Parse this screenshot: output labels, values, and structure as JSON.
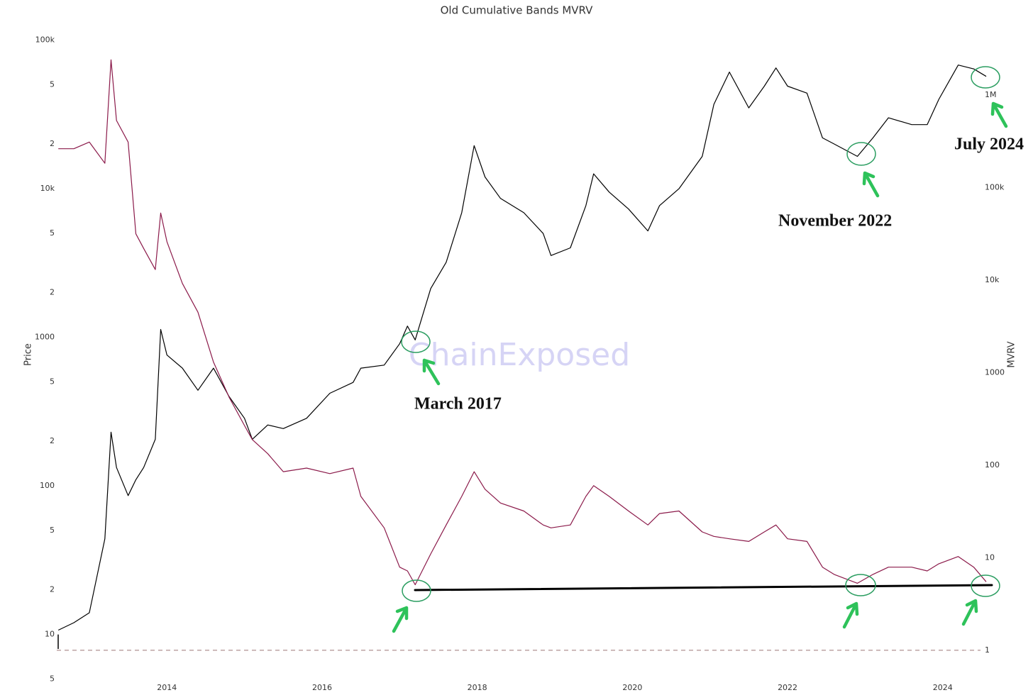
{
  "chart_data": {
    "type": "line",
    "title": "Old Cumulative Bands MVRV",
    "y_label": "Price",
    "y2_label": "MVRV",
    "annotations": [
      "March 2017",
      "November 2022",
      "July 2024"
    ],
    "watermark": "ChainExposed",
    "log_y": true,
    "log_y2": true,
    "grid": false,
    "xlim": [
      2012.58,
      2024.56
    ],
    "xticks": [
      2014,
      2016,
      2018,
      2020,
      2022,
      2024
    ],
    "ylim": [
      4,
      120000
    ],
    "yticks": [
      5,
      10,
      {
        "value": 20,
        "label": "2"
      },
      {
        "value": 50,
        "label": "5"
      },
      100,
      {
        "value": 200,
        "label": "2"
      },
      {
        "value": 500,
        "label": "5"
      },
      1000,
      {
        "value": 2000,
        "label": "2"
      },
      {
        "value": 5000,
        "label": "5"
      },
      {
        "value": 10000,
        "label": "10k"
      },
      {
        "value": 20000,
        "label": "2"
      },
      {
        "value": 50000,
        "label": "5"
      },
      {
        "value": 100000,
        "label": "100k"
      }
    ],
    "y2lim": [
      0.34,
      5250000
    ],
    "y2ticks": [
      1,
      10,
      100,
      1000,
      {
        "value": 10000,
        "label": "10k"
      },
      {
        "value": 100000,
        "label": "100k"
      },
      {
        "value": 1000000,
        "label": "1M"
      }
    ],
    "x": [
      2012.6,
      2012.8,
      2013.0,
      2013.2,
      2013.28,
      2013.35,
      2013.5,
      2013.6,
      2013.7,
      2013.85,
      2013.92,
      2014.0,
      2014.2,
      2014.4,
      2014.6,
      2014.8,
      2015.0,
      2015.1,
      2015.3,
      2015.5,
      2015.8,
      2016.1,
      2016.4,
      2016.5,
      2016.8,
      2017.0,
      2017.1,
      2017.2,
      2017.4,
      2017.6,
      2017.8,
      2017.96,
      2018.1,
      2018.3,
      2018.6,
      2018.85,
      2018.95,
      2019.2,
      2019.4,
      2019.5,
      2019.7,
      2019.95,
      2020.2,
      2020.35,
      2020.6,
      2020.9,
      2021.05,
      2021.25,
      2021.5,
      2021.7,
      2021.85,
      2022.0,
      2022.25,
      2022.45,
      2022.6,
      2022.9,
      2023.1,
      2023.3,
      2023.6,
      2023.8,
      2023.95,
      2024.2,
      2024.4,
      2024.56
    ],
    "series": [
      {
        "color": "#000000",
        "values": [
          10.7,
          12,
          14,
          44,
          230,
          133,
          86,
          110,
          133,
          206,
          1130,
          760,
          620,
          440,
          620,
          400,
          285,
          206,
          257,
          243,
          285,
          420,
          497,
          620,
          650,
          905,
          1190,
          960,
          2130,
          3200,
          6900,
          19500,
          12000,
          8600,
          6900,
          5000,
          3550,
          4000,
          7700,
          12600,
          9500,
          7300,
          5200,
          7700,
          10000,
          16500,
          37000,
          61000,
          35000,
          49000,
          65000,
          49000,
          44000,
          22000,
          20000,
          16500,
          22000,
          30000,
          27000,
          27000,
          40000,
          68000,
          64000,
          57000
        ]
      },
      {
        "color": "#8b1a4a",
        "axis": "y2",
        "values": [
          263000,
          263000,
          310000,
          183000,
          2400000,
          530000,
          310000,
          31600,
          22000,
          13000,
          53000,
          26000,
          9200,
          4500,
          1300,
          545,
          268,
          189,
          133,
          85,
          93,
          81,
          93,
          46,
          21,
          7.9,
          7.2,
          5.1,
          11,
          22.6,
          46,
          85,
          55,
          39,
          32,
          22.6,
          21,
          22.6,
          46,
          60,
          46,
          32,
          22.6,
          30,
          32,
          19,
          17,
          16,
          15,
          19,
          22.6,
          16,
          15,
          7.9,
          6.6,
          5.3,
          6.6,
          7.9,
          7.9,
          7.2,
          8.6,
          10.3,
          7.9,
          5.5
        ]
      }
    ]
  }
}
